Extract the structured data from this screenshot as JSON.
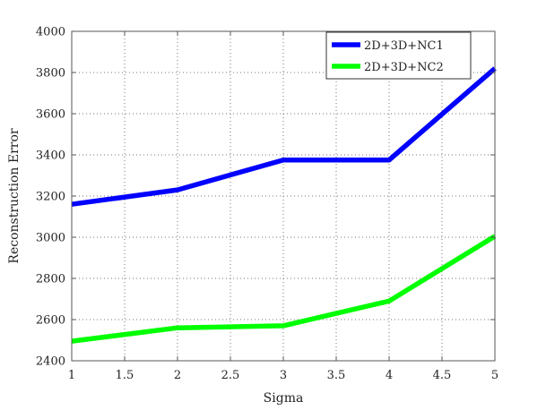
{
  "chart_data": {
    "type": "line",
    "title": "",
    "xlabel": "Sigma",
    "ylabel": "Reconstruction Error",
    "xlim": [
      1,
      5
    ],
    "ylim": [
      2400,
      4000
    ],
    "xticks": [
      1,
      1.5,
      2,
      2.5,
      3,
      3.5,
      4,
      4.5,
      5
    ],
    "xtick_labels": [
      "1",
      "1.5",
      "2",
      "2.5",
      "3",
      "3.5",
      "4",
      "4.5",
      "5"
    ],
    "yticks": [
      2400,
      2600,
      2800,
      3000,
      3200,
      3400,
      3600,
      3800,
      4000
    ],
    "ytick_labels": [
      "2400",
      "2600",
      "2800",
      "3000",
      "3200",
      "3400",
      "3600",
      "3800",
      "4000"
    ],
    "grid": true,
    "legend_position": "top-right",
    "x": [
      1,
      2,
      3,
      4,
      5
    ],
    "series": [
      {
        "name": "2D+3D+NC1",
        "color": "#0000ff",
        "values": [
          3160,
          3230,
          3375,
          3375,
          3820
        ]
      },
      {
        "name": "2D+3D+NC2",
        "color": "#00ff00",
        "values": [
          2495,
          2560,
          2570,
          2690,
          3005
        ]
      }
    ]
  }
}
